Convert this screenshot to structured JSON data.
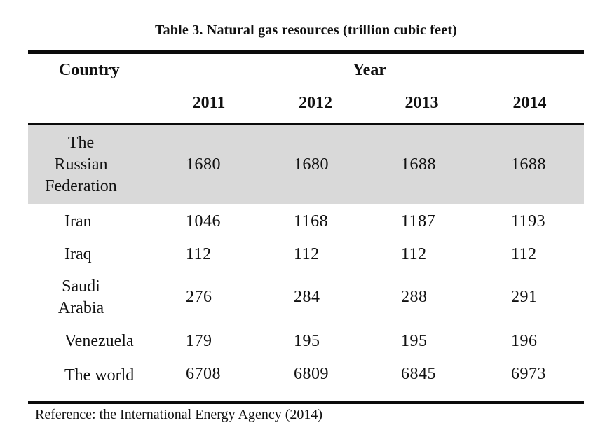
{
  "title": "Table 3. Natural gas resources (trillion cubic feet)",
  "table": {
    "header": {
      "country": "Country",
      "year_group": "Year",
      "years": [
        "2011",
        "2012",
        "2013",
        "2014"
      ]
    },
    "rows": [
      {
        "country": "The\nRussian\nFederation",
        "values": [
          "1680",
          "1680",
          "1688",
          "1688"
        ],
        "shaded": true
      },
      {
        "country": "Iran",
        "values": [
          "1046",
          "1168",
          "1187",
          "1193"
        ],
        "shaded": false
      },
      {
        "country": "Iraq",
        "values": [
          "112",
          "112",
          "112",
          "112"
        ],
        "shaded": false
      },
      {
        "country": "Saudi\nArabia",
        "values": [
          "276",
          "284",
          "288",
          "291"
        ],
        "shaded": false
      },
      {
        "country": "Venezuela",
        "values": [
          "179",
          "195",
          "195",
          "196"
        ],
        "shaded": false
      },
      {
        "country": "The world",
        "values": [
          "6708",
          "6809",
          "6845",
          "6973"
        ],
        "shaded": false
      }
    ],
    "shading_color": "#d9d9d9"
  },
  "footer": {
    "reference": "Reference: the International Energy Agency (2014)"
  }
}
